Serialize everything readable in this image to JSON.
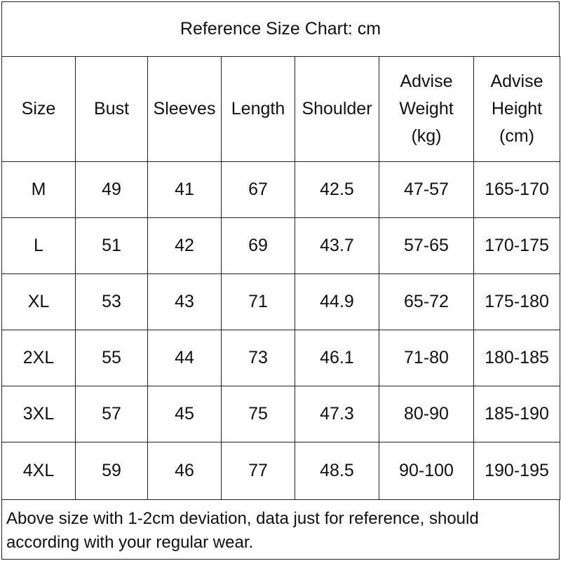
{
  "header": {
    "title": "Reference Size Chart: cm"
  },
  "table": {
    "columns": [
      "Size",
      "Bust",
      "Sleeves",
      "Length",
      "Shoulder",
      "Advise\nWeight\n(kg)",
      "Advise\nHeight\n(cm)"
    ],
    "rows": [
      [
        "M",
        49,
        41,
        67,
        42.5,
        "47-57",
        "165-170"
      ],
      [
        "L",
        51,
        42,
        69,
        43.7,
        "57-65",
        "170-175"
      ],
      [
        "XL",
        53,
        43,
        71,
        44.9,
        "65-72",
        "175-180"
      ],
      [
        "2XL",
        55,
        44,
        73,
        46.1,
        "71-80",
        "180-185"
      ],
      [
        "3XL",
        57,
        45,
        75,
        47.3,
        "80-90",
        "185-190"
      ],
      [
        "4XL",
        59,
        46,
        77,
        48.5,
        "90-100",
        "190-195"
      ]
    ]
  },
  "footer": {
    "lines": [
      "Above size with 1-2cm deviation, data just for reference, should",
      "according with your regular wear."
    ]
  }
}
